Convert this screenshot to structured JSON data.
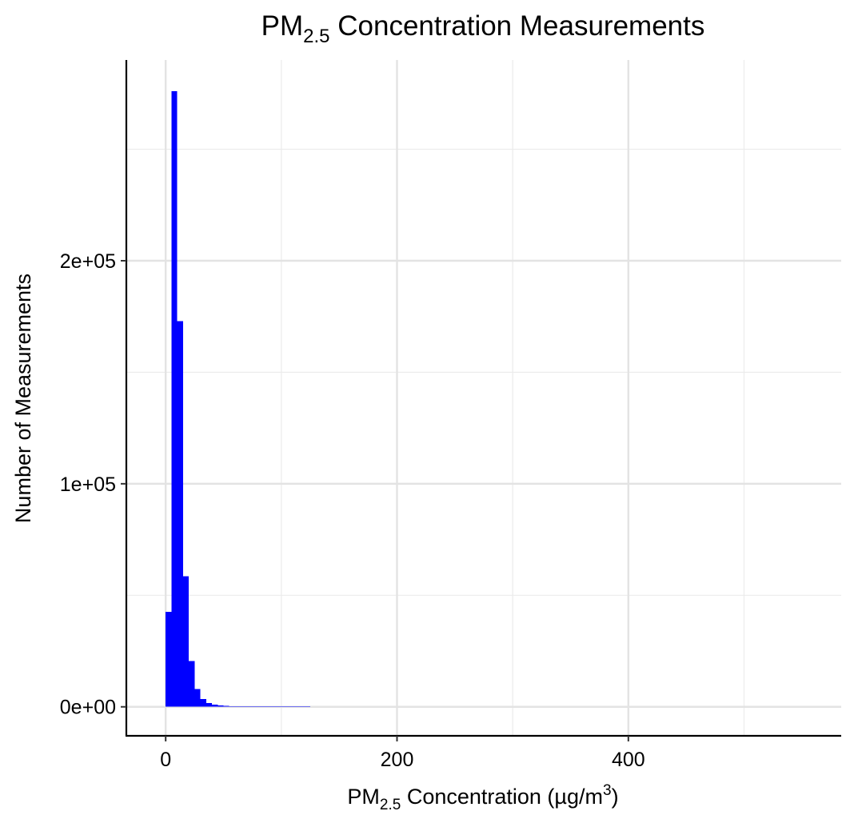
{
  "chart_data": {
    "type": "bar",
    "subtype": "histogram",
    "title": {
      "main": "PM",
      "sub": "2.5",
      "rest": " Concentration Measurements"
    },
    "xlabel": {
      "main": "PM",
      "sub": "2.5",
      "rest": " Concentration (µg/m",
      "sup": "3",
      "end": ")"
    },
    "ylabel": "Number of Measurements",
    "xlim": [
      -34,
      584
    ],
    "ylim": [
      -13000,
      290000
    ],
    "x_ticks": [
      {
        "value": 0,
        "label": "0"
      },
      {
        "value": 200,
        "label": "200"
      },
      {
        "value": 400,
        "label": "400"
      }
    ],
    "x_minor_gridlines": [
      100,
      300,
      500
    ],
    "y_ticks": [
      {
        "value": 0,
        "label": "0e+00"
      },
      {
        "value": 100000,
        "label": "1e+05"
      },
      {
        "value": 200000,
        "label": "2e+05"
      }
    ],
    "y_minor_gridlines": [
      50000,
      150000,
      250000
    ],
    "grid": true,
    "bar_color": "#0000ff",
    "bin_width": 5,
    "bins": [
      {
        "x0": 0,
        "x1": 5,
        "count": 42500
      },
      {
        "x0": 5,
        "x1": 10,
        "count": 276000
      },
      {
        "x0": 10,
        "x1": 15,
        "count": 173000
      },
      {
        "x0": 15,
        "x1": 20,
        "count": 58500
      },
      {
        "x0": 20,
        "x1": 25,
        "count": 20500
      },
      {
        "x0": 25,
        "x1": 30,
        "count": 8000
      },
      {
        "x0": 30,
        "x1": 35,
        "count": 3500
      },
      {
        "x0": 35,
        "x1": 40,
        "count": 1700
      },
      {
        "x0": 40,
        "x1": 45,
        "count": 900
      },
      {
        "x0": 45,
        "x1": 50,
        "count": 600
      },
      {
        "x0": 50,
        "x1": 55,
        "count": 400
      },
      {
        "x0": 55,
        "x1": 60,
        "count": 300
      },
      {
        "x0": 60,
        "x1": 65,
        "count": 200
      },
      {
        "x0": 65,
        "x1": 70,
        "count": 150
      },
      {
        "x0": 70,
        "x1": 75,
        "count": 120
      },
      {
        "x0": 75,
        "x1": 80,
        "count": 100
      },
      {
        "x0": 80,
        "x1": 85,
        "count": 80
      },
      {
        "x0": 85,
        "x1": 90,
        "count": 60
      },
      {
        "x0": 90,
        "x1": 95,
        "count": 50
      },
      {
        "x0": 95,
        "x1": 100,
        "count": 40
      },
      {
        "x0": 100,
        "x1": 105,
        "count": 30
      },
      {
        "x0": 105,
        "x1": 110,
        "count": 25
      },
      {
        "x0": 110,
        "x1": 115,
        "count": 20
      },
      {
        "x0": 115,
        "x1": 120,
        "count": 15
      },
      {
        "x0": 120,
        "x1": 125,
        "count": 10
      }
    ]
  }
}
